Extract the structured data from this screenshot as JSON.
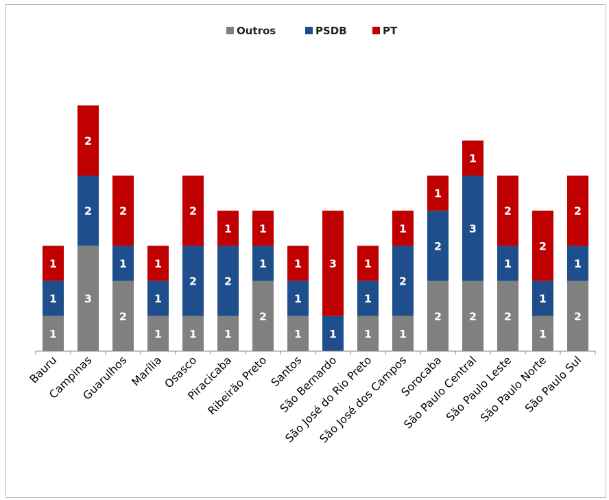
{
  "chart_data": {
    "type": "bar",
    "stacked": true,
    "categories": [
      "Bauru",
      "Campinas",
      "Guarulhos",
      "Marília",
      "Osasco",
      "Piracicaba",
      "Ribeirão Preto",
      "Santos",
      "São Bernardo",
      "São José do Rio Preto",
      "São José dos Campos",
      "Sorocaba",
      "São Paulo Central",
      "São Paulo Leste",
      "São Paulo Norte",
      "São Paulo Sul"
    ],
    "series": [
      {
        "name": "Outros",
        "color": "#808080",
        "values": [
          1,
          3,
          2,
          1,
          1,
          1,
          2,
          1,
          0,
          1,
          1,
          2,
          2,
          2,
          1,
          2
        ]
      },
      {
        "name": "PSDB",
        "color": "#1f4e8c",
        "values": [
          1,
          2,
          1,
          1,
          2,
          2,
          1,
          1,
          1,
          1,
          2,
          2,
          3,
          1,
          1,
          1
        ]
      },
      {
        "name": "PT",
        "color": "#c00000",
        "values": [
          1,
          2,
          2,
          1,
          2,
          1,
          1,
          1,
          3,
          1,
          1,
          1,
          1,
          2,
          2,
          2
        ]
      }
    ],
    "data_labels": [
      [
        "1",
        "3",
        "2",
        "1",
        "1",
        "1",
        "2",
        "1",
        "",
        "1",
        "1",
        "2",
        "2",
        "2",
        "1",
        "2"
      ],
      [
        "1",
        "2",
        "1",
        "1",
        "2",
        "2",
        "1",
        "1",
        "1",
        "1",
        "2",
        "2",
        "3",
        "1",
        "1",
        "1"
      ],
      [
        "1",
        "2",
        "2",
        "1",
        "2",
        "1",
        "1",
        "1",
        "3",
        "1",
        "1",
        "1",
        "1",
        "2",
        "2",
        "2"
      ]
    ],
    "ylim": [
      0,
      7
    ],
    "grid": false,
    "legend": "top",
    "title": "",
    "xlabel": "",
    "ylabel": ""
  }
}
